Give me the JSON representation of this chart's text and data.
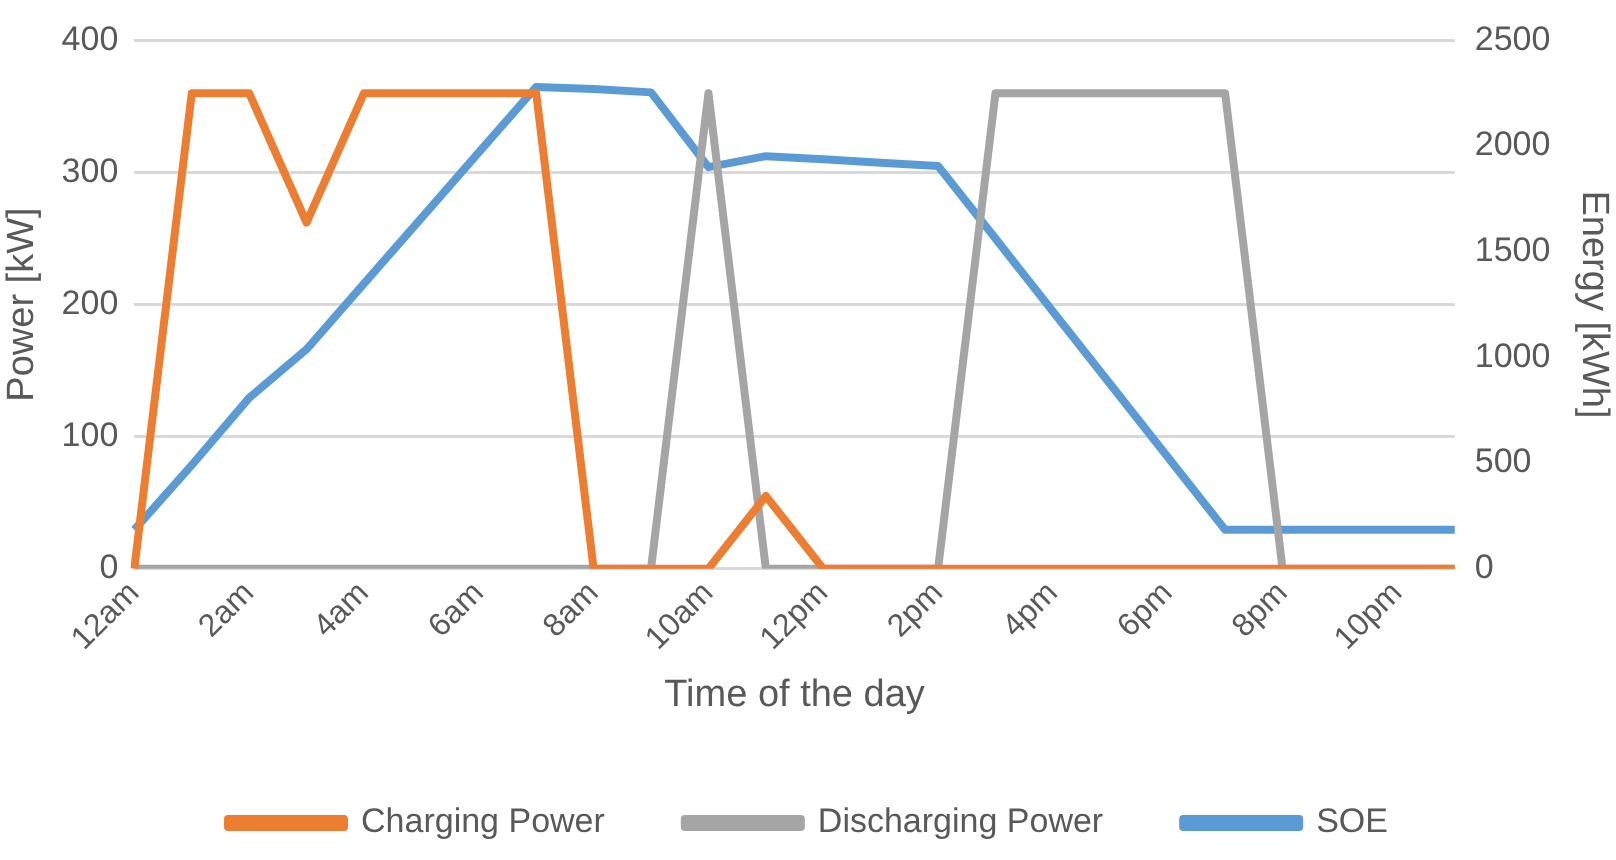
{
  "chart_data": {
    "type": "line",
    "xlabel": "Time of the day",
    "ylabel": "Power [kW]",
    "y2label": "Energy [kWh]",
    "categories": [
      "12am",
      null,
      "2am",
      null,
      "4am",
      null,
      "6am",
      null,
      "8am",
      null,
      "10am",
      null,
      "12pm",
      null,
      "2pm",
      null,
      "4pm",
      null,
      "6pm",
      null,
      "8pm",
      null,
      "10pm",
      null
    ],
    "series": [
      {
        "name": "Charging Power",
        "color": "#ed7d31",
        "values": [
          0,
          360,
          360,
          262,
          360,
          360,
          360,
          360,
          0,
          0,
          0,
          55,
          0,
          0,
          0,
          0,
          0,
          0,
          0,
          0,
          0,
          0,
          0,
          0
        ]
      },
      {
        "name": "Discharging Power",
        "color": "#a5a5a5",
        "values": [
          0,
          0,
          0,
          0,
          0,
          0,
          0,
          0,
          0,
          0,
          360,
          0,
          0,
          0,
          0,
          360,
          360,
          360,
          360,
          360,
          0,
          0,
          0,
          0
        ]
      },
      {
        "name": "SOE",
        "color": "#5b9bd5",
        "axis": "y2",
        "values": [
          184,
          490,
          808,
          1038,
          1349,
          1659,
          1970,
          2280,
          2270,
          2254,
          1900,
          1952,
          1937,
          1921,
          1906,
          1562,
          1217,
          873,
          528,
          184,
          184,
          184,
          184,
          184
        ]
      }
    ],
    "ylim": [
      0,
      400
    ],
    "yticks": [
      0,
      100,
      200,
      300,
      400
    ],
    "y2lim": [
      0,
      2500
    ],
    "y2ticks": [
      0,
      500,
      1000,
      1500,
      2000,
      2500
    ],
    "grid": "y",
    "legend": "bottom",
    "marker": "none",
    "line_style": "solid"
  }
}
